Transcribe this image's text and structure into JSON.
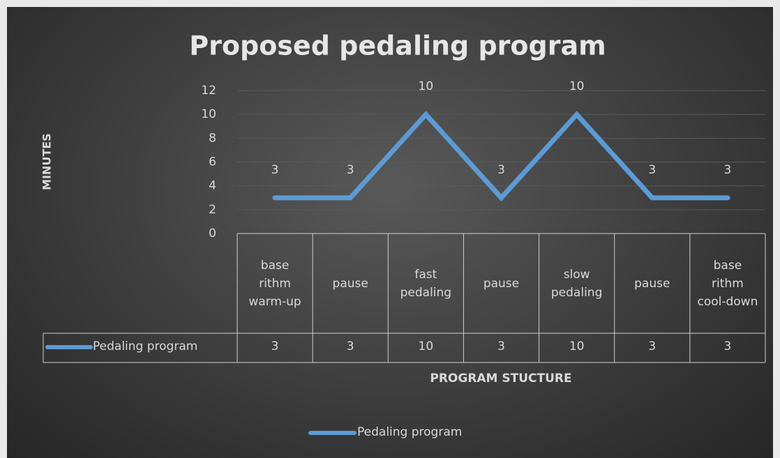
{
  "chart_data": {
    "type": "line",
    "title": "Proposed  pedaling  program",
    "y_label": "MINUTES",
    "x_label": "PROGRAM STUCTURE",
    "categories": [
      "base rithm warm-up",
      "pause",
      "fast pedaling",
      "pause",
      "slow pedaling",
      "pause",
      "base rithm cool-down"
    ],
    "series": [
      {
        "name": "Pedaling program",
        "color": "#5b9bd5",
        "values": [
          3,
          3,
          10,
          3,
          10,
          3,
          3
        ]
      }
    ],
    "ylim": [
      0,
      12
    ],
    "yticks": [
      0,
      2,
      4,
      6,
      8,
      10,
      12
    ],
    "grid": true,
    "data_table": true,
    "legend": "bottom"
  }
}
